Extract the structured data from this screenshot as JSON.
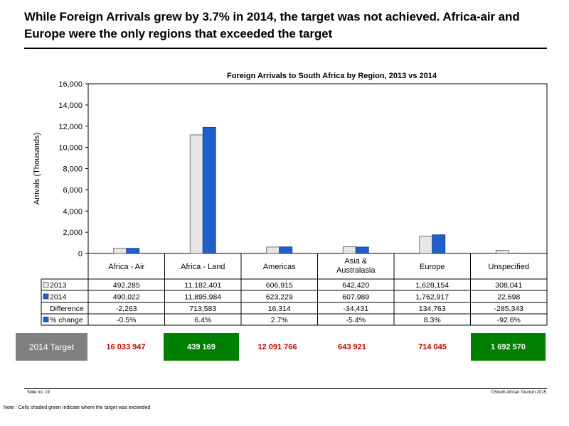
{
  "headline": "While Foreign Arrivals grew by 3.7% in 2014, the target was not achieved. Africa-air and Europe were the only regions that exceeded the target",
  "colors": {
    "series_2013": "#e6e6e6",
    "series_2014": "#1f5fcc",
    "exceeded": "#008000",
    "missed_text": "#c00000",
    "target_label_bg": "#808080"
  },
  "chart_data": {
    "type": "bar",
    "title": "Foreign Arrivals to South Africa by Region, 2013 vs 2014",
    "ylabel": "Arrivals (Thousands)",
    "ylim": [
      0,
      16000
    ],
    "yticks": [
      "0",
      "2,000",
      "4,000",
      "6,000",
      "8,000",
      "10,000",
      "12,000",
      "14,000",
      "16,000"
    ],
    "categories": [
      "Africa - Air",
      "Africa - Land",
      "Americas",
      "Asia & Australasia",
      "Europe",
      "Unspecified"
    ],
    "series": [
      {
        "name": "2013",
        "values": [
          492.285,
          11182.401,
          606.915,
          642.42,
          1628.154,
          308.041
        ]
      },
      {
        "name": "2014",
        "values": [
          490.022,
          11895.984,
          623.229,
          607.989,
          1762.917,
          22.698
        ]
      }
    ],
    "table_rows": [
      {
        "label": "2013",
        "marker": "2013",
        "cells": [
          "492,285",
          "11,182,401",
          "606,915",
          "642,420",
          "1,628,154",
          "308,041"
        ]
      },
      {
        "label": "2014",
        "marker": "2014",
        "cells": [
          "490,022",
          "11,895,984",
          "623,229",
          "607,989",
          "1,762,917",
          "22,698"
        ]
      },
      {
        "label": "Difference",
        "marker": "",
        "cells": [
          "-2,263",
          "713,583",
          "16,314",
          "-34,431",
          "134,763",
          "-285,343"
        ]
      },
      {
        "label": "% change",
        "marker": "2014",
        "cells": [
          "-0.5%",
          "6.4%",
          "2.7%",
          "-5.4%",
          "8.3%",
          "-92.6%"
        ]
      }
    ]
  },
  "targets": {
    "label": "2014 Target",
    "values": [
      {
        "value": "16 033 947",
        "exceeded": false
      },
      {
        "value": "439 169",
        "exceeded": true
      },
      {
        "value": "12 091 766",
        "exceeded": false
      },
      {
        "value": "643 921",
        "exceeded": false
      },
      {
        "value": "714 045",
        "exceeded": false
      },
      {
        "value": "1 692 570",
        "exceeded": true
      }
    ]
  },
  "footer": {
    "slide_no": "Slide no. 19",
    "copyright": "©South African Tourism 2015",
    "note": "Note : Cells shaded green indicate where the target was exceeded"
  }
}
